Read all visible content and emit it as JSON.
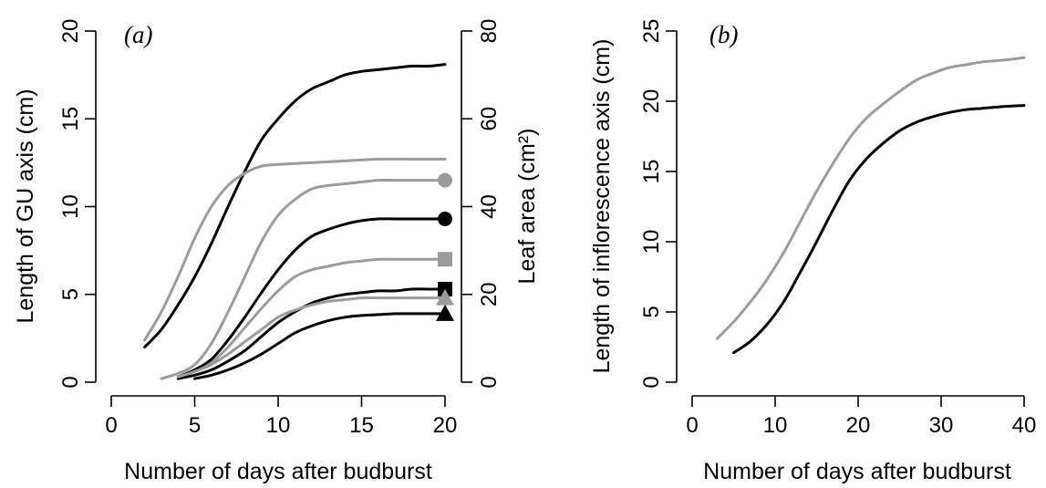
{
  "colors": {
    "black": "#000000",
    "grey": "#9b9b9b"
  },
  "chart_data": [
    {
      "type": "line",
      "panel_label": "(a)",
      "xlabel": "Number of days after budburst",
      "ylabel": "Length of GU axis (cm)",
      "y2label": "Leaf area (cm²)",
      "xlim": [
        0,
        20
      ],
      "ylim": [
        0,
        20
      ],
      "y2lim": [
        0,
        80
      ],
      "xticks": [
        0,
        5,
        10,
        15,
        20
      ],
      "yticks": [
        0,
        5,
        10,
        15,
        20
      ],
      "y2ticks": [
        0,
        20,
        40,
        60,
        80
      ],
      "grid": false,
      "series": [
        {
          "color": "black",
          "end_marker": "none",
          "x": [
            2,
            3,
            4,
            5,
            6,
            7,
            8,
            9,
            10,
            11,
            12,
            13,
            14,
            15,
            16,
            17,
            18,
            19,
            20
          ],
          "y": [
            2.0,
            3.0,
            4.4,
            6.0,
            7.9,
            10.0,
            12.0,
            13.8,
            15.0,
            16.0,
            16.7,
            17.1,
            17.5,
            17.7,
            17.8,
            17.9,
            18.0,
            18.0,
            18.1
          ]
        },
        {
          "color": "grey",
          "end_marker": "none",
          "x": [
            2,
            3,
            4,
            5,
            6,
            7,
            8,
            9,
            10,
            12,
            14,
            16,
            18,
            20
          ],
          "y": [
            2.4,
            4.0,
            6.0,
            8.2,
            10.0,
            11.2,
            11.9,
            12.3,
            12.4,
            12.5,
            12.6,
            12.7,
            12.7,
            12.7
          ]
        },
        {
          "color": "grey",
          "end_marker": "circle",
          "x": [
            3,
            4,
            5,
            6,
            7,
            8,
            9,
            10,
            11,
            12,
            13,
            14,
            15,
            16,
            17,
            18,
            19,
            20
          ],
          "y": [
            0.2,
            0.5,
            1.0,
            2.2,
            4.0,
            6.0,
            8.0,
            9.5,
            10.4,
            11.0,
            11.2,
            11.3,
            11.4,
            11.5,
            11.5,
            11.5,
            11.5,
            11.5
          ]
        },
        {
          "color": "black",
          "end_marker": "circle",
          "x": [
            4,
            5,
            6,
            7,
            8,
            9,
            10,
            11,
            12,
            13,
            14,
            15,
            16,
            17,
            18,
            19,
            20
          ],
          "y": [
            0.3,
            0.7,
            1.3,
            2.4,
            3.7,
            5.1,
            6.4,
            7.5,
            8.3,
            8.7,
            9.0,
            9.2,
            9.3,
            9.3,
            9.3,
            9.3,
            9.3
          ]
        },
        {
          "color": "grey",
          "end_marker": "square",
          "x": [
            4,
            5,
            6,
            7,
            8,
            9,
            10,
            11,
            12,
            13,
            14,
            15,
            16,
            17,
            18,
            19,
            20
          ],
          "y": [
            0.3,
            0.6,
            1.1,
            2.0,
            3.1,
            4.2,
            5.2,
            6.0,
            6.4,
            6.6,
            6.8,
            6.9,
            7.0,
            7.0,
            7.0,
            7.0,
            7.0
          ]
        },
        {
          "color": "black",
          "end_marker": "square",
          "x": [
            4,
            5,
            6,
            7,
            8,
            9,
            10,
            11,
            12,
            13,
            14,
            15,
            16,
            17,
            18,
            19,
            20
          ],
          "y": [
            0.2,
            0.4,
            0.7,
            1.2,
            1.8,
            2.6,
            3.4,
            4.0,
            4.5,
            4.8,
            5.0,
            5.1,
            5.2,
            5.2,
            5.3,
            5.3,
            5.3
          ]
        },
        {
          "color": "grey",
          "end_marker": "triangle",
          "x": [
            4,
            5,
            6,
            7,
            8,
            9,
            10,
            11,
            12,
            13,
            14,
            15,
            16,
            17,
            18,
            19,
            20
          ],
          "y": [
            0.3,
            0.6,
            1.0,
            1.6,
            2.3,
            3.0,
            3.7,
            4.1,
            4.4,
            4.6,
            4.7,
            4.8,
            4.8,
            4.8,
            4.8,
            4.8,
            4.8
          ]
        },
        {
          "color": "black",
          "end_marker": "triangle",
          "x": [
            5,
            6,
            7,
            8,
            9,
            10,
            11,
            12,
            13,
            14,
            15,
            16,
            17,
            18,
            19,
            20
          ],
          "y": [
            0.2,
            0.4,
            0.7,
            1.1,
            1.6,
            2.2,
            2.8,
            3.2,
            3.5,
            3.7,
            3.8,
            3.85,
            3.9,
            3.9,
            3.9,
            3.9
          ]
        }
      ]
    },
    {
      "type": "line",
      "panel_label": "(b)",
      "xlabel": "Number of days after budburst",
      "ylabel": "Length of inflorescence axis (cm)",
      "xlim": [
        0,
        40
      ],
      "ylim": [
        0,
        25
      ],
      "xticks": [
        0,
        10,
        20,
        30,
        40
      ],
      "yticks": [
        0,
        5,
        10,
        15,
        20,
        25
      ],
      "grid": false,
      "series": [
        {
          "color": "grey",
          "x": [
            3,
            5,
            7,
            9,
            11,
            13,
            15,
            17,
            19,
            21,
            23,
            25,
            27,
            29,
            31,
            33,
            35,
            37,
            40
          ],
          "y": [
            3.1,
            4.3,
            5.7,
            7.3,
            9.2,
            11.4,
            13.6,
            15.6,
            17.4,
            18.8,
            19.8,
            20.7,
            21.5,
            22.0,
            22.4,
            22.6,
            22.8,
            22.9,
            23.1
          ]
        },
        {
          "color": "black",
          "x": [
            5,
            7,
            9,
            11,
            13,
            15,
            17,
            19,
            21,
            23,
            25,
            27,
            29,
            31,
            33,
            35,
            37,
            40
          ],
          "y": [
            2.1,
            2.9,
            4.1,
            5.7,
            7.8,
            10.0,
            12.3,
            14.4,
            15.9,
            17.0,
            17.9,
            18.5,
            18.9,
            19.2,
            19.4,
            19.5,
            19.6,
            19.7
          ]
        }
      ]
    }
  ]
}
